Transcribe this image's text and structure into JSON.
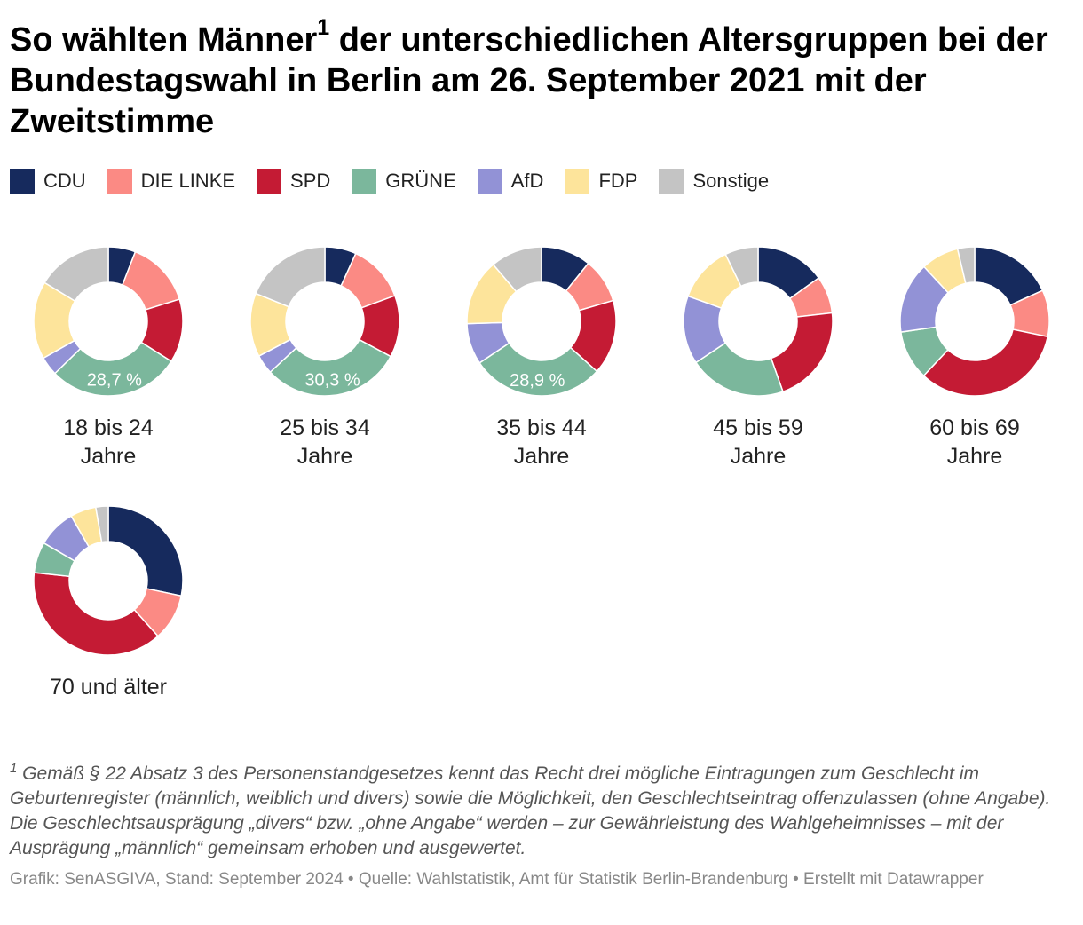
{
  "title": {
    "part1": "So wählten Männer",
    "sup": "1",
    "part2": " der unterschiedlichen Altersgruppen bei der Bundestagswahl in Berlin am 26. September 2021 mit der Zweitstimme"
  },
  "chart_data": {
    "type": "pie",
    "subtype": "donut",
    "legend": [
      {
        "name": "CDU",
        "color": "#162a5d"
      },
      {
        "name": "DIE LINKE",
        "color": "#fb8a84"
      },
      {
        "name": "SPD",
        "color": "#c41b34"
      },
      {
        "name": "GRÜNE",
        "color": "#7bb79c"
      },
      {
        "name": "AfD",
        "color": "#9292d6"
      },
      {
        "name": "FDP",
        "color": "#fde49b"
      },
      {
        "name": "Sonstige",
        "color": "#c4c4c4"
      }
    ],
    "groups": [
      {
        "label_line1": "18 bis 24",
        "label_line2": "Jahre",
        "values": [
          5.9,
          14.3,
          13.8,
          28.7,
          4.1,
          16.9,
          16.3
        ],
        "data_label": "28,7 %",
        "labeled_party": 3
      },
      {
        "label_line1": "25 bis 34",
        "label_line2": "Jahre",
        "values": [
          6.8,
          12.6,
          13.4,
          30.3,
          4.2,
          13.8,
          18.9
        ],
        "data_label": "30,3 %",
        "labeled_party": 3
      },
      {
        "label_line1": "35 bis 44",
        "label_line2": "Jahre",
        "values": [
          10.8,
          9.7,
          16.2,
          28.9,
          8.9,
          14.3,
          11.2
        ],
        "data_label": "28,9 %",
        "labeled_party": 3
      },
      {
        "label_line1": "45 bis 59",
        "label_line2": "Jahre",
        "values": [
          15.1,
          8.1,
          21.4,
          21.1,
          14.8,
          12.3,
          7.2
        ],
        "data_label": "",
        "labeled_party": -1
      },
      {
        "label_line1": "60 bis 69",
        "label_line2": "Jahre",
        "values": [
          18.2,
          10.1,
          33.7,
          10.7,
          15.4,
          8.2,
          3.7
        ],
        "data_label": "",
        "labeled_party": -1
      },
      {
        "label_line1": "70 und älter",
        "label_line2": "",
        "values": [
          28.3,
          10.1,
          38.3,
          6.7,
          8.3,
          5.6,
          2.7
        ],
        "data_label": "",
        "labeled_party": -1
      }
    ]
  },
  "footnote": {
    "sup": "1",
    "text": " Gemäß § 22 Absatz 3 des Personenstandgesetzes kennt das Recht drei mögliche Eintragungen zum Geschlecht im Geburtenregister (männlich, weiblich und divers) sowie die Möglichkeit, den Geschlechtseintrag offenzulassen (ohne Angabe). Die Geschlechtsausprägung „divers“ bzw. „ohne Angabe“ werden – zur Gewährleistung des Wahlgeheimnisses – mit der Ausprägung „männlich“ gemeinsam erhoben und ausgewertet."
  },
  "source": "Grafik: SenASGIVA, Stand: September 2024 • Quelle: Wahlstatistik, Amt für Statistik Berlin-Brandenburg • Erstellt mit Datawrapper"
}
